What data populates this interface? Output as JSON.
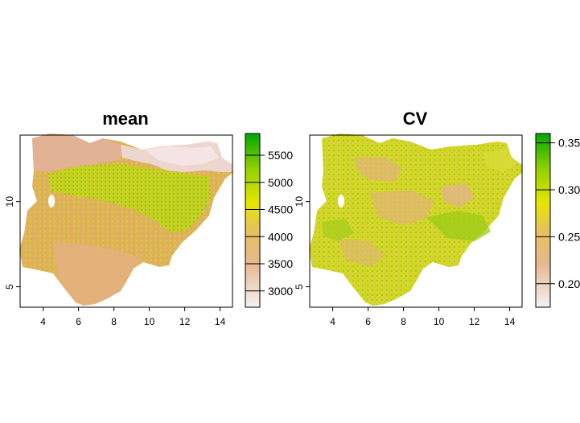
{
  "panels": [
    {
      "title": "mean",
      "x_ticks": [
        "4",
        "6",
        "8",
        "10",
        "12",
        "14"
      ],
      "y_ticks": [
        "5",
        "10"
      ],
      "legend_ticks": [
        "3000",
        "3500",
        "4000",
        "4500",
        "5000",
        "5500"
      ]
    },
    {
      "title": "CV",
      "x_ticks": [
        "4",
        "6",
        "8",
        "10",
        "12",
        "14"
      ],
      "y_ticks": [
        "5",
        "10"
      ],
      "legend_ticks": [
        "0.20",
        "0.25",
        "0.30",
        "0.35"
      ]
    }
  ],
  "colors": {
    "low": "#f2f2f2",
    "mid_low": "#e6b07a",
    "mid": "#e6e600",
    "mid_high": "#7fc800",
    "high": "#00a600"
  },
  "chart_data": [
    {
      "type": "heatmap",
      "title": "mean",
      "xlim": [
        2.7,
        14.7
      ],
      "ylim": [
        3.8,
        13.9
      ],
      "x_ticks": [
        4,
        6,
        8,
        10,
        12,
        14
      ],
      "y_ticks": [
        5,
        10
      ],
      "color_scale": {
        "min": 2700,
        "max": 5900,
        "ticks": [
          3000,
          3500,
          4000,
          4500,
          5000,
          5500
        ]
      }
    },
    {
      "type": "heatmap",
      "title": "CV",
      "xlim": [
        2.7,
        14.7
      ],
      "ylim": [
        3.8,
        13.9
      ],
      "x_ticks": [
        4,
        6,
        8,
        10,
        12,
        14
      ],
      "y_ticks": [
        5,
        10
      ],
      "color_scale": {
        "min": 0.175,
        "max": 0.36,
        "ticks": [
          0.2,
          0.25,
          0.3,
          0.35
        ]
      }
    }
  ]
}
